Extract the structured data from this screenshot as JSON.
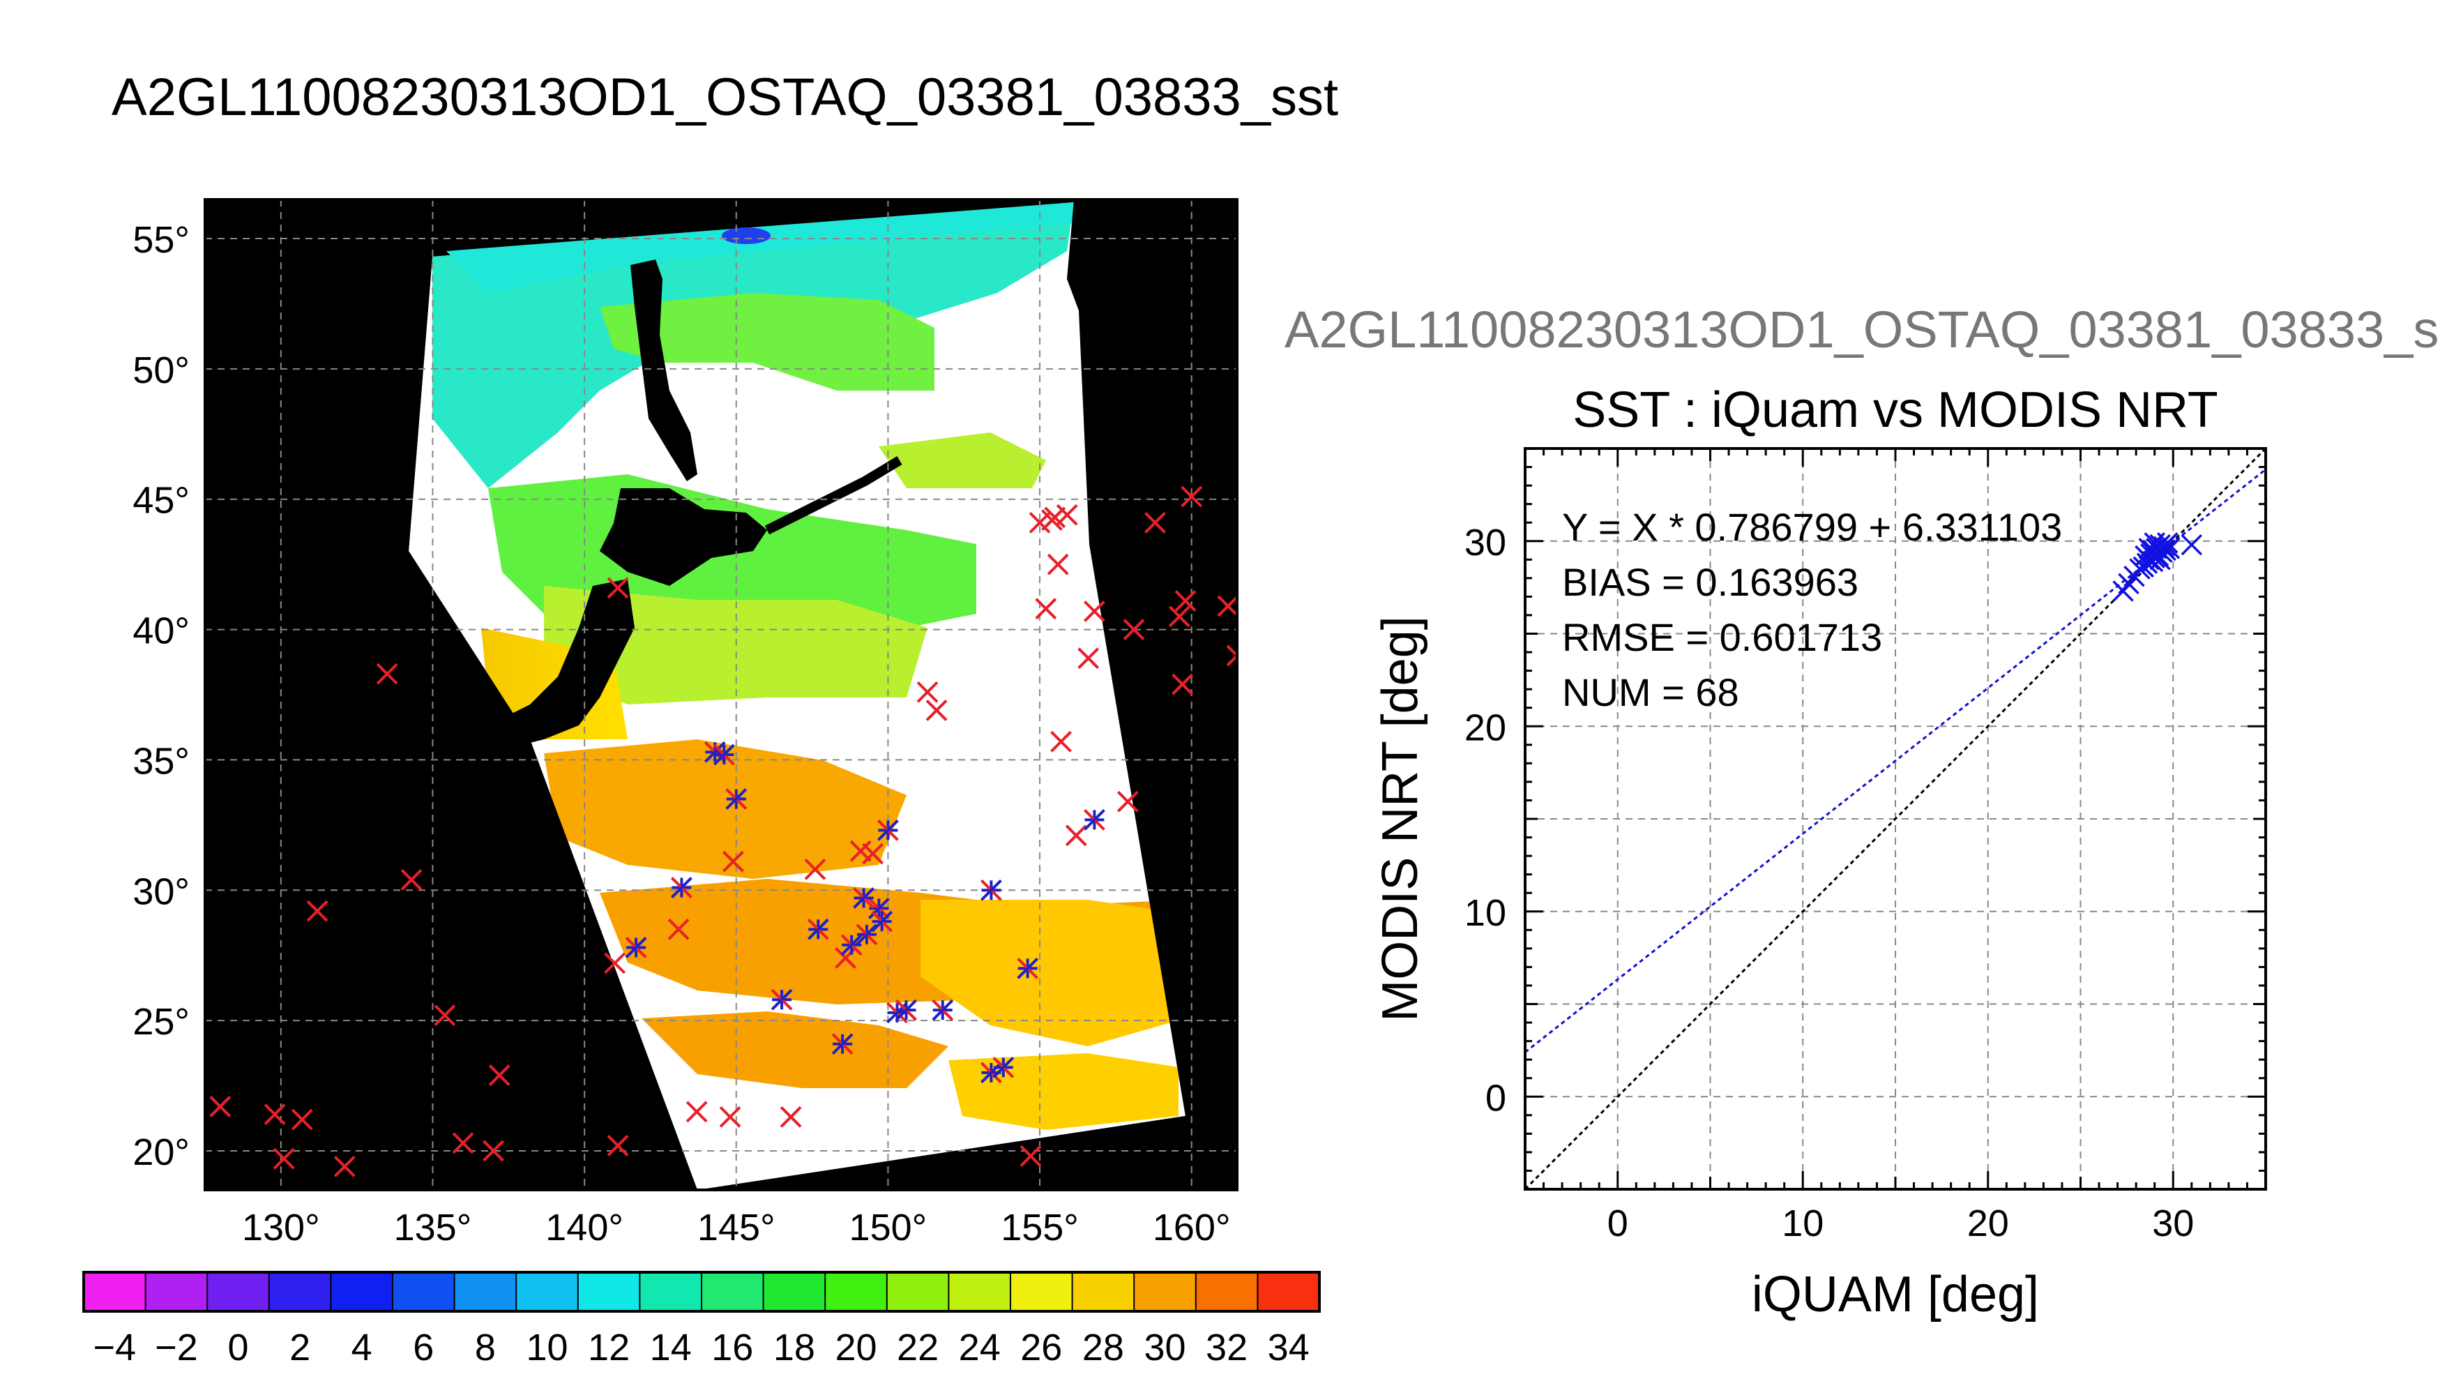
{
  "window": {
    "main_title": "A2GL11008230313OD1_OSTAQ_03381_03833_sst",
    "right_title": "A2GL11008230313OD1_OSTAQ_03381_03833_s"
  },
  "chart_data": [
    {
      "type": "map",
      "lon_ticks": [
        "130°",
        "135°",
        "140°",
        "145°",
        "150°",
        "155°",
        "160°"
      ],
      "lat_ticks": [
        "20°",
        "25°",
        "30°",
        "35°",
        "40°",
        "45°",
        "50°",
        "55°"
      ],
      "xlim": [
        127.5,
        161.5
      ],
      "ylim": [
        18.5,
        56.5
      ],
      "colorbar": {
        "ticks": [
          "−4",
          "−2",
          "0",
          "2",
          "4",
          "6",
          "8",
          "10",
          "12",
          "14",
          "16",
          "18",
          "20",
          "22",
          "24",
          "26",
          "28",
          "30",
          "32",
          "34"
        ],
        "range": [
          -5,
          35
        ]
      },
      "colors": {
        "land": "#000000",
        "cloud": "#ffffff",
        "marker_red": "#e8202a",
        "marker_blue": "#2020c8"
      },
      "buoys_red": [
        [
          128,
          21.7
        ],
        [
          129.8,
          21.4
        ],
        [
          130.1,
          19.7
        ],
        [
          130.7,
          21.2
        ],
        [
          131.2,
          29.2
        ],
        [
          132.1,
          19.4
        ],
        [
          133.5,
          38.3
        ],
        [
          134.3,
          30.4
        ],
        [
          135.4,
          25.2
        ],
        [
          136,
          20.3
        ],
        [
          137,
          20
        ],
        [
          137.2,
          22.9
        ],
        [
          141.1,
          20.2
        ],
        [
          141,
          27.2
        ],
        [
          141.1,
          41.6
        ],
        [
          143.1,
          28.5
        ],
        [
          143.7,
          21.5
        ],
        [
          144.8,
          21.3
        ],
        [
          144.9,
          31.1
        ],
        [
          146.8,
          21.3
        ],
        [
          147.6,
          30.8
        ],
        [
          148.6,
          27.4
        ],
        [
          149.1,
          31.5
        ],
        [
          149.5,
          31.4
        ],
        [
          151.3,
          37.6
        ],
        [
          151.6,
          36.9
        ],
        [
          154.7,
          19.8
        ],
        [
          155,
          44.1
        ],
        [
          155.2,
          40.8
        ],
        [
          155.5,
          44.3
        ],
        [
          155.6,
          42.5
        ],
        [
          155.7,
          35.7
        ],
        [
          155.9,
          44.4
        ],
        [
          156.2,
          32.1
        ],
        [
          156.6,
          38.9
        ],
        [
          156.8,
          40.7
        ],
        [
          157.9,
          33.4
        ],
        [
          158.1,
          40
        ],
        [
          158.8,
          44.1
        ],
        [
          159.6,
          40.5
        ],
        [
          159.8,
          41.1
        ],
        [
          159.7,
          37.9
        ],
        [
          160,
          45.1
        ],
        [
          161.2,
          40.9
        ],
        [
          161.5,
          39
        ],
        [
          155.4,
          44.2
        ]
      ],
      "buoys_blue": [
        [
          144.3,
          35.3
        ],
        [
          144.6,
          35.2
        ],
        [
          145,
          33.5
        ],
        [
          143.2,
          30.1
        ],
        [
          141.7,
          27.8
        ],
        [
          146.5,
          25.8
        ],
        [
          147.7,
          28.5
        ],
        [
          148.5,
          24.1
        ],
        [
          148.8,
          27.9
        ],
        [
          149.3,
          28.3
        ],
        [
          149.7,
          29.3
        ],
        [
          150,
          32.3
        ],
        [
          150.3,
          25.3
        ],
        [
          150.6,
          25.4
        ],
        [
          151.8,
          25.4
        ],
        [
          153.4,
          23
        ],
        [
          153.8,
          23.2
        ],
        [
          153.4,
          30
        ],
        [
          154.6,
          27
        ],
        [
          156.8,
          32.7
        ],
        [
          149.2,
          29.7
        ],
        [
          149.8,
          28.8
        ]
      ]
    },
    {
      "type": "scatter",
      "title": "SST : iQuam vs MODIS NRT",
      "xlabel": "iQUAM [deg]",
      "ylabel": "MODIS NRT [deg]",
      "xlim": [
        -5,
        35
      ],
      "ylim": [
        -5,
        35
      ],
      "x_ticks": [
        "0",
        "10",
        "20",
        "30"
      ],
      "y_ticks": [
        "0",
        "10",
        "20",
        "30"
      ],
      "grid": true,
      "stats": {
        "equation": "Y = X * 0.786799 + 6.331103",
        "bias": "BIAS = 0.163963",
        "rmse": "RMSE = 0.601713",
        "num": "NUM = 68"
      },
      "fit": {
        "slope": 0.786799,
        "intercept": 6.331103
      },
      "series": [
        {
          "points": [
            [
              27.3,
              27.3
            ],
            [
              27.6,
              27.7
            ],
            [
              27.9,
              28.1
            ],
            [
              28.2,
              28.5
            ],
            [
              28.4,
              28.6
            ],
            [
              28.5,
              29.2
            ],
            [
              28.6,
              28.8
            ],
            [
              28.7,
              29.0
            ],
            [
              28.8,
              29.3
            ],
            [
              28.9,
              29.5
            ],
            [
              29.0,
              29.1
            ],
            [
              29.1,
              29.6
            ],
            [
              29.2,
              29.2
            ],
            [
              29.3,
              29.8
            ],
            [
              29.4,
              29.4
            ],
            [
              29.5,
              29.7
            ],
            [
              29.6,
              29.5
            ],
            [
              29.7,
              29.9
            ],
            [
              29.8,
              29.6
            ],
            [
              28.7,
              29.6
            ],
            [
              29.0,
              29.9
            ],
            [
              29.3,
              29.0
            ],
            [
              28.9,
              28.9
            ],
            [
              31.0,
              29.8
            ]
          ]
        }
      ]
    }
  ]
}
